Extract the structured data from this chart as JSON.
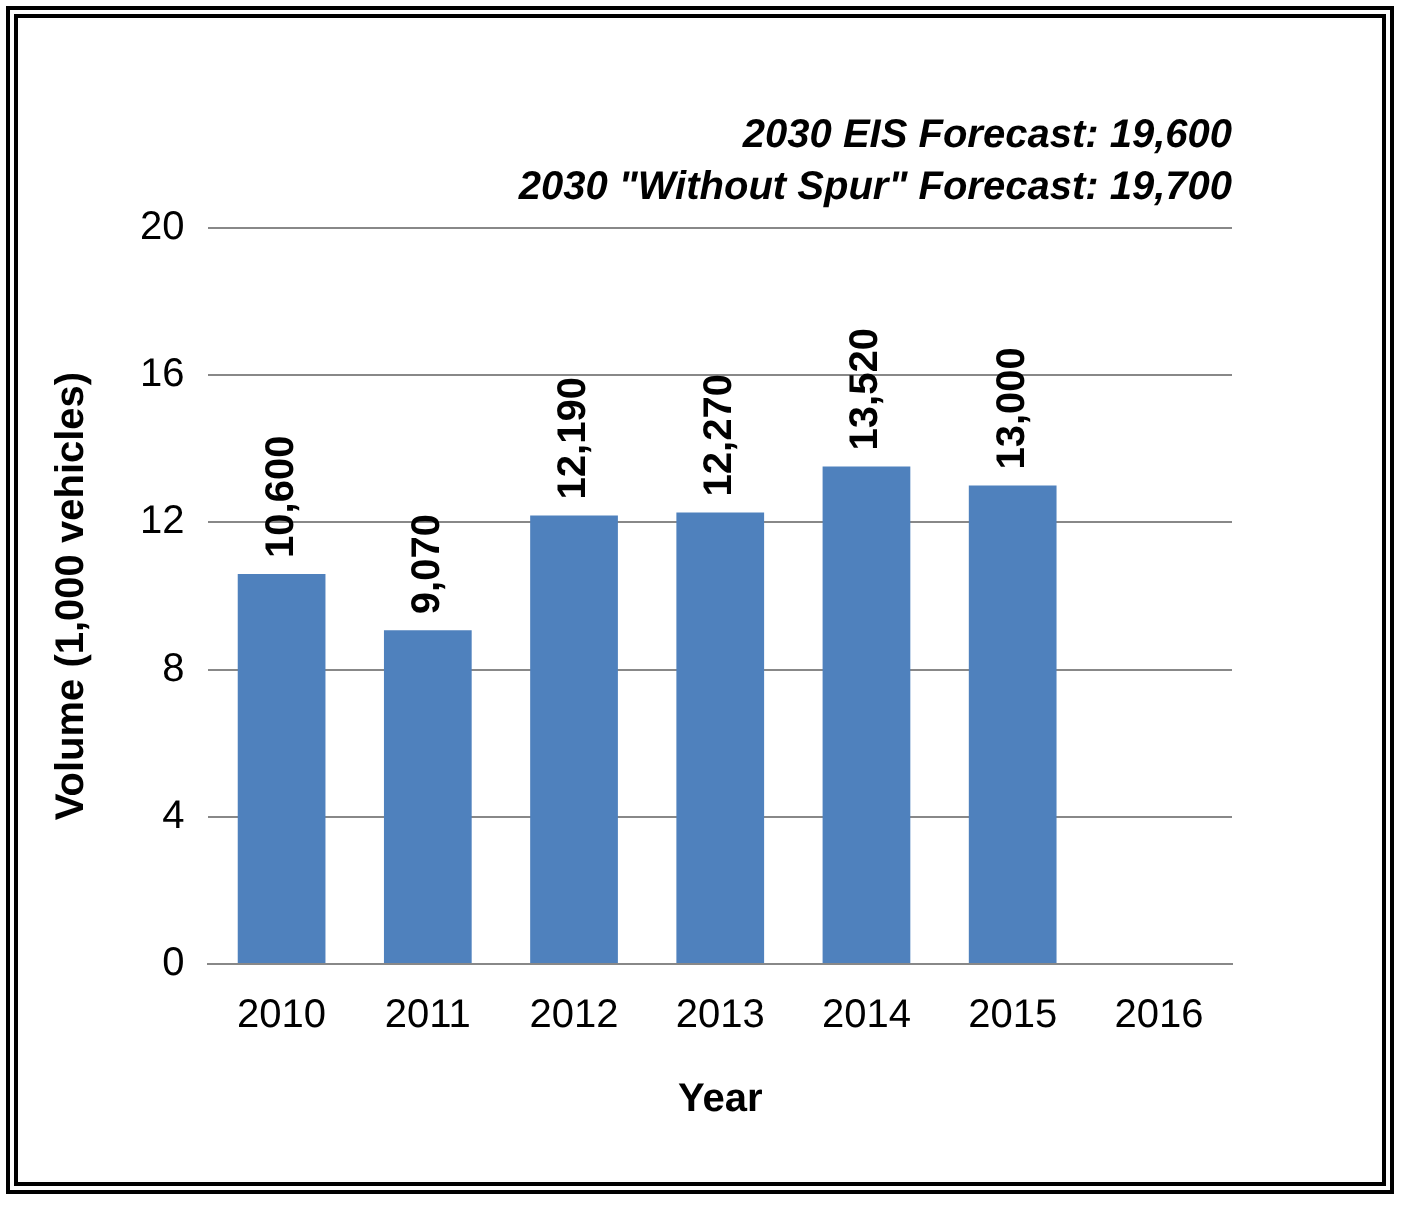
{
  "chart_data": {
    "type": "bar",
    "title": "2030 EIS Forecast: 19,600",
    "subtitle": "2030 \"Without Spur\" Forecast: 19,700",
    "xlabel": "Year",
    "ylabel": "Volume (1,000 vehicles)",
    "categories": [
      "2010",
      "2011",
      "2012",
      "2013",
      "2014",
      "2015",
      "2016"
    ],
    "series": [
      {
        "color": "#4f81bd",
        "values": [
          10.6,
          9.07,
          12.19,
          12.27,
          13.52,
          13.0,
          null
        ]
      }
    ],
    "annotations": [
      {
        "text": "10,600",
        "x": "2010",
        "y": 10.6
      },
      {
        "text": "9,070",
        "x": "2011",
        "y": 9.07
      },
      {
        "text": "12,190",
        "x": "2012",
        "y": 12.19
      },
      {
        "text": "12,270",
        "x": "2013",
        "y": 12.27
      },
      {
        "text": "13,520",
        "x": "2014",
        "y": 13.52
      },
      {
        "text": "13,000",
        "x": "2015",
        "y": 13.0
      }
    ],
    "ylim": [
      0,
      20
    ],
    "yticks": [
      0,
      4,
      8,
      12,
      16,
      20
    ],
    "grid": "y",
    "legend": false
  }
}
